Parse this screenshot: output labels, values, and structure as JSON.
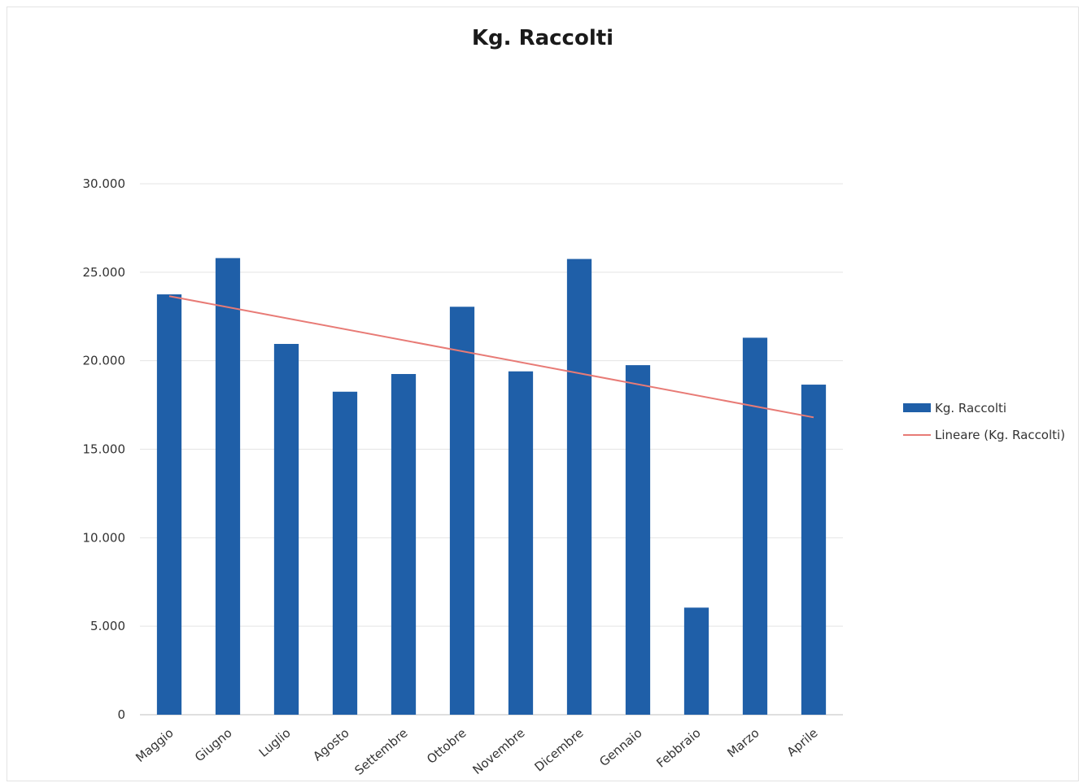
{
  "chart_data": {
    "type": "bar",
    "title": "Kg. Raccolti",
    "xlabel": "",
    "ylabel": "",
    "categories": [
      "Maggio",
      "Giugno",
      "Luglio",
      "Agosto",
      "Settembre",
      "Ottobre",
      "Novembre",
      "Dicembre",
      "Gennaio",
      "Febbraio",
      "Marzo",
      "Aprile"
    ],
    "series": [
      {
        "name": "Kg. Raccolti",
        "type": "bar",
        "color": "#1f5fa8",
        "values": [
          23750,
          25800,
          20950,
          18250,
          19250,
          23050,
          19400,
          25750,
          19750,
          6050,
          21300,
          18650
        ]
      }
    ],
    "trendline": {
      "name": "Lineare (Kg. Raccolti)",
      "type": "linear",
      "color": "#e87b76",
      "start": 23650,
      "end": 16800
    },
    "y_ticks": [
      "0",
      "5.000",
      "10.000",
      "15.000",
      "20.000",
      "25.000",
      "30.000"
    ],
    "ylim": [
      0,
      30000
    ],
    "grid": true,
    "legend_position": "right"
  }
}
